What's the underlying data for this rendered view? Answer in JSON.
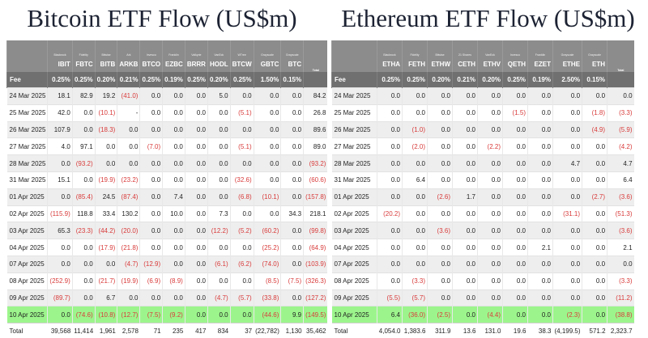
{
  "chart_data": [
    {
      "type": "table",
      "title": "Bitcoin ETF Flow (US$m)",
      "issuers": [
        "Blackrock",
        "Fidelity",
        "Bitwise",
        "Ark",
        "Invesco",
        "Franklin",
        "Valkyrie",
        "VanEck",
        "WTree",
        "Grayscale",
        "Grayscale",
        ""
      ],
      "tickers": [
        "IBIT",
        "FBTC",
        "BITB",
        "ARKB",
        "BTCO",
        "EZBC",
        "BRRR",
        "HODL",
        "BTCW",
        "GBTC",
        "BTC",
        "Total"
      ],
      "fee_label": "Fee",
      "fees": [
        "0.25%",
        "0.25%",
        "0.20%",
        "0.21%",
        "0.25%",
        "0.19%",
        "0.25%",
        "0.20%",
        "0.25%",
        "1.50%",
        "0.15%",
        ""
      ],
      "rows": [
        {
          "date": "24 Mar 2025",
          "values": [
            "18.1",
            "82.9",
            "19.2",
            "(41.0)",
            "0.0",
            "0.0",
            "0.0",
            "5.0",
            "0.0",
            "0.0",
            "0.0",
            "84.2"
          ]
        },
        {
          "date": "25 Mar 2025",
          "values": [
            "42.0",
            "0.0",
            "(10.1)",
            "-",
            "0.0",
            "0.0",
            "0.0",
            "0.0",
            "(5.1)",
            "0.0",
            "0.0",
            "26.8"
          ]
        },
        {
          "date": "26 Mar 2025",
          "values": [
            "107.9",
            "0.0",
            "(18.3)",
            "0.0",
            "0.0",
            "0.0",
            "0.0",
            "0.0",
            "0.0",
            "0.0",
            "0.0",
            "89.6"
          ]
        },
        {
          "date": "27 Mar 2025",
          "values": [
            "4.0",
            "97.1",
            "0.0",
            "0.0",
            "(7.0)",
            "0.0",
            "0.0",
            "0.0",
            "(5.1)",
            "0.0",
            "0.0",
            "89.0"
          ]
        },
        {
          "date": "28 Mar 2025",
          "values": [
            "0.0",
            "(93.2)",
            "0.0",
            "0.0",
            "0.0",
            "0.0",
            "0.0",
            "0.0",
            "0.0",
            "0.0",
            "0.0",
            "(93.2)"
          ]
        },
        {
          "date": "31 Mar 2025",
          "values": [
            "15.1",
            "0.0",
            "(19.9)",
            "(23.2)",
            "0.0",
            "0.0",
            "0.0",
            "0.0",
            "(32.6)",
            "0.0",
            "0.0",
            "(60.6)"
          ]
        },
        {
          "date": "01 Apr 2025",
          "values": [
            "0.0",
            "(85.4)",
            "24.5",
            "(87.4)",
            "0.0",
            "7.4",
            "0.0",
            "0.0",
            "(6.8)",
            "(10.1)",
            "0.0",
            "(157.8)"
          ]
        },
        {
          "date": "02 Apr 2025",
          "values": [
            "(115.9)",
            "118.8",
            "33.4",
            "130.2",
            "0.0",
            "10.0",
            "0.0",
            "7.3",
            "0.0",
            "0.0",
            "34.3",
            "218.1"
          ]
        },
        {
          "date": "03 Apr 2025",
          "values": [
            "65.3",
            "(23.3)",
            "(44.2)",
            "(20.0)",
            "0.0",
            "0.0",
            "0.0",
            "(12.2)",
            "(5.2)",
            "(60.2)",
            "0.0",
            "(99.8)"
          ]
        },
        {
          "date": "04 Apr 2025",
          "values": [
            "0.0",
            "0.0",
            "(17.9)",
            "(21.8)",
            "0.0",
            "0.0",
            "0.0",
            "0.0",
            "0.0",
            "(25.2)",
            "0.0",
            "(64.9)"
          ]
        },
        {
          "date": "07 Apr 2025",
          "values": [
            "0.0",
            "0.0",
            "0.0",
            "(4.7)",
            "(12.9)",
            "0.0",
            "0.0",
            "(6.1)",
            "(6.2)",
            "(74.0)",
            "0.0",
            "(103.9)"
          ]
        },
        {
          "date": "08 Apr 2025",
          "values": [
            "(252.9)",
            "0.0",
            "(21.7)",
            "(19.9)",
            "(6.9)",
            "(8.9)",
            "0.0",
            "0.0",
            "0.0",
            "(8.5)",
            "(7.5)",
            "(326.3)"
          ]
        },
        {
          "date": "09 Apr 2025",
          "values": [
            "(89.7)",
            "0.0",
            "6.7",
            "0.0",
            "0.0",
            "0.0",
            "0.0",
            "(4.7)",
            "(5.7)",
            "(33.8)",
            "0.0",
            "(127.2)"
          ]
        },
        {
          "date": "10 Apr 2025",
          "values": [
            "0.0",
            "(74.6)",
            "(10.8)",
            "(12.7)",
            "(7.5)",
            "(9.2)",
            "0.0",
            "0.0",
            "0.0",
            "(44.6)",
            "9.9",
            "(149.5)"
          ],
          "highlight": true
        }
      ],
      "total_label": "Total",
      "totals": [
        "39,568",
        "11,414",
        "1,961",
        "2,578",
        "71",
        "235",
        "417",
        "834",
        "37",
        "(22,782)",
        "1,130",
        "35,462"
      ]
    },
    {
      "type": "table",
      "title": "Ethereum ETF Flow (US$m)",
      "issuers": [
        "Blackrock",
        "Fidelity",
        "Bitwise",
        "21 Shares",
        "VanEck",
        "Invesco",
        "Franklin",
        "Grayscale",
        "Grayscale",
        ""
      ],
      "tickers": [
        "ETHA",
        "FETH",
        "ETHW",
        "CETH",
        "ETHV",
        "QETH",
        "EZET",
        "ETHE",
        "ETH",
        "Total"
      ],
      "fee_label": "Fee",
      "fees": [
        "0.25%",
        "0.25%",
        "0.20%",
        "0.21%",
        "0.20%",
        "0.25%",
        "0.19%",
        "2.50%",
        "0.15%",
        ""
      ],
      "rows": [
        {
          "date": "24 Mar 2025",
          "values": [
            "0.0",
            "0.0",
            "0.0",
            "0.0",
            "0.0",
            "0.0",
            "0.0",
            "0.0",
            "0.0",
            "0.0"
          ]
        },
        {
          "date": "25 Mar 2025",
          "values": [
            "0.0",
            "0.0",
            "0.0",
            "0.0",
            "0.0",
            "(1.5)",
            "0.0",
            "0.0",
            "(1.8)",
            "(3.3)"
          ]
        },
        {
          "date": "26 Mar 2025",
          "values": [
            "0.0",
            "(1.0)",
            "0.0",
            "0.0",
            "0.0",
            "0.0",
            "0.0",
            "0.0",
            "(4.9)",
            "(5.9)"
          ]
        },
        {
          "date": "27 Mar 2025",
          "values": [
            "0.0",
            "(2.0)",
            "0.0",
            "0.0",
            "(2.2)",
            "0.0",
            "0.0",
            "0.0",
            "0.0",
            "(4.2)"
          ]
        },
        {
          "date": "28 Mar 2025",
          "values": [
            "0.0",
            "0.0",
            "0.0",
            "0.0",
            "0.0",
            "0.0",
            "0.0",
            "4.7",
            "0.0",
            "4.7"
          ]
        },
        {
          "date": "31 Mar 2025",
          "values": [
            "0.0",
            "6.4",
            "0.0",
            "0.0",
            "0.0",
            "0.0",
            "0.0",
            "0.0",
            "0.0",
            "6.4"
          ]
        },
        {
          "date": "01 Apr 2025",
          "values": [
            "0.0",
            "0.0",
            "(2.6)",
            "1.7",
            "0.0",
            "0.0",
            "0.0",
            "0.0",
            "(2.7)",
            "(3.6)"
          ]
        },
        {
          "date": "02 Apr 2025",
          "values": [
            "(20.2)",
            "0.0",
            "0.0",
            "0.0",
            "0.0",
            "0.0",
            "0.0",
            "(31.1)",
            "0.0",
            "(51.3)"
          ]
        },
        {
          "date": "03 Apr 2025",
          "values": [
            "0.0",
            "0.0",
            "(3.6)",
            "0.0",
            "0.0",
            "0.0",
            "0.0",
            "0.0",
            "0.0",
            "(3.6)"
          ]
        },
        {
          "date": "04 Apr 2025",
          "values": [
            "0.0",
            "0.0",
            "0.0",
            "0.0",
            "0.0",
            "0.0",
            "2.1",
            "0.0",
            "0.0",
            "2.1"
          ]
        },
        {
          "date": "07 Apr 2025",
          "values": [
            "0.0",
            "0.0",
            "0.0",
            "0.0",
            "0.0",
            "0.0",
            "0.0",
            "0.0",
            "0.0",
            "0.0"
          ]
        },
        {
          "date": "08 Apr 2025",
          "values": [
            "0.0",
            "(3.3)",
            "0.0",
            "0.0",
            "0.0",
            "0.0",
            "0.0",
            "0.0",
            "0.0",
            "(3.3)"
          ]
        },
        {
          "date": "09 Apr 2025",
          "values": [
            "(5.5)",
            "(5.7)",
            "0.0",
            "0.0",
            "0.0",
            "0.0",
            "0.0",
            "0.0",
            "0.0",
            "(11.2)"
          ]
        },
        {
          "date": "10 Apr 2025",
          "values": [
            "6.4",
            "(36.0)",
            "(2.5)",
            "0.0",
            "(4.4)",
            "0.0",
            "0.0",
            "(2.3)",
            "0.0",
            "(38.8)"
          ],
          "highlight": true
        }
      ],
      "total_label": "Total",
      "totals": [
        "4,054.0",
        "1,383.6",
        "311.9",
        "13.6",
        "131.0",
        "19.6",
        "38.3",
        "(4,199.5)",
        "571.2",
        "2,323.7"
      ]
    }
  ]
}
